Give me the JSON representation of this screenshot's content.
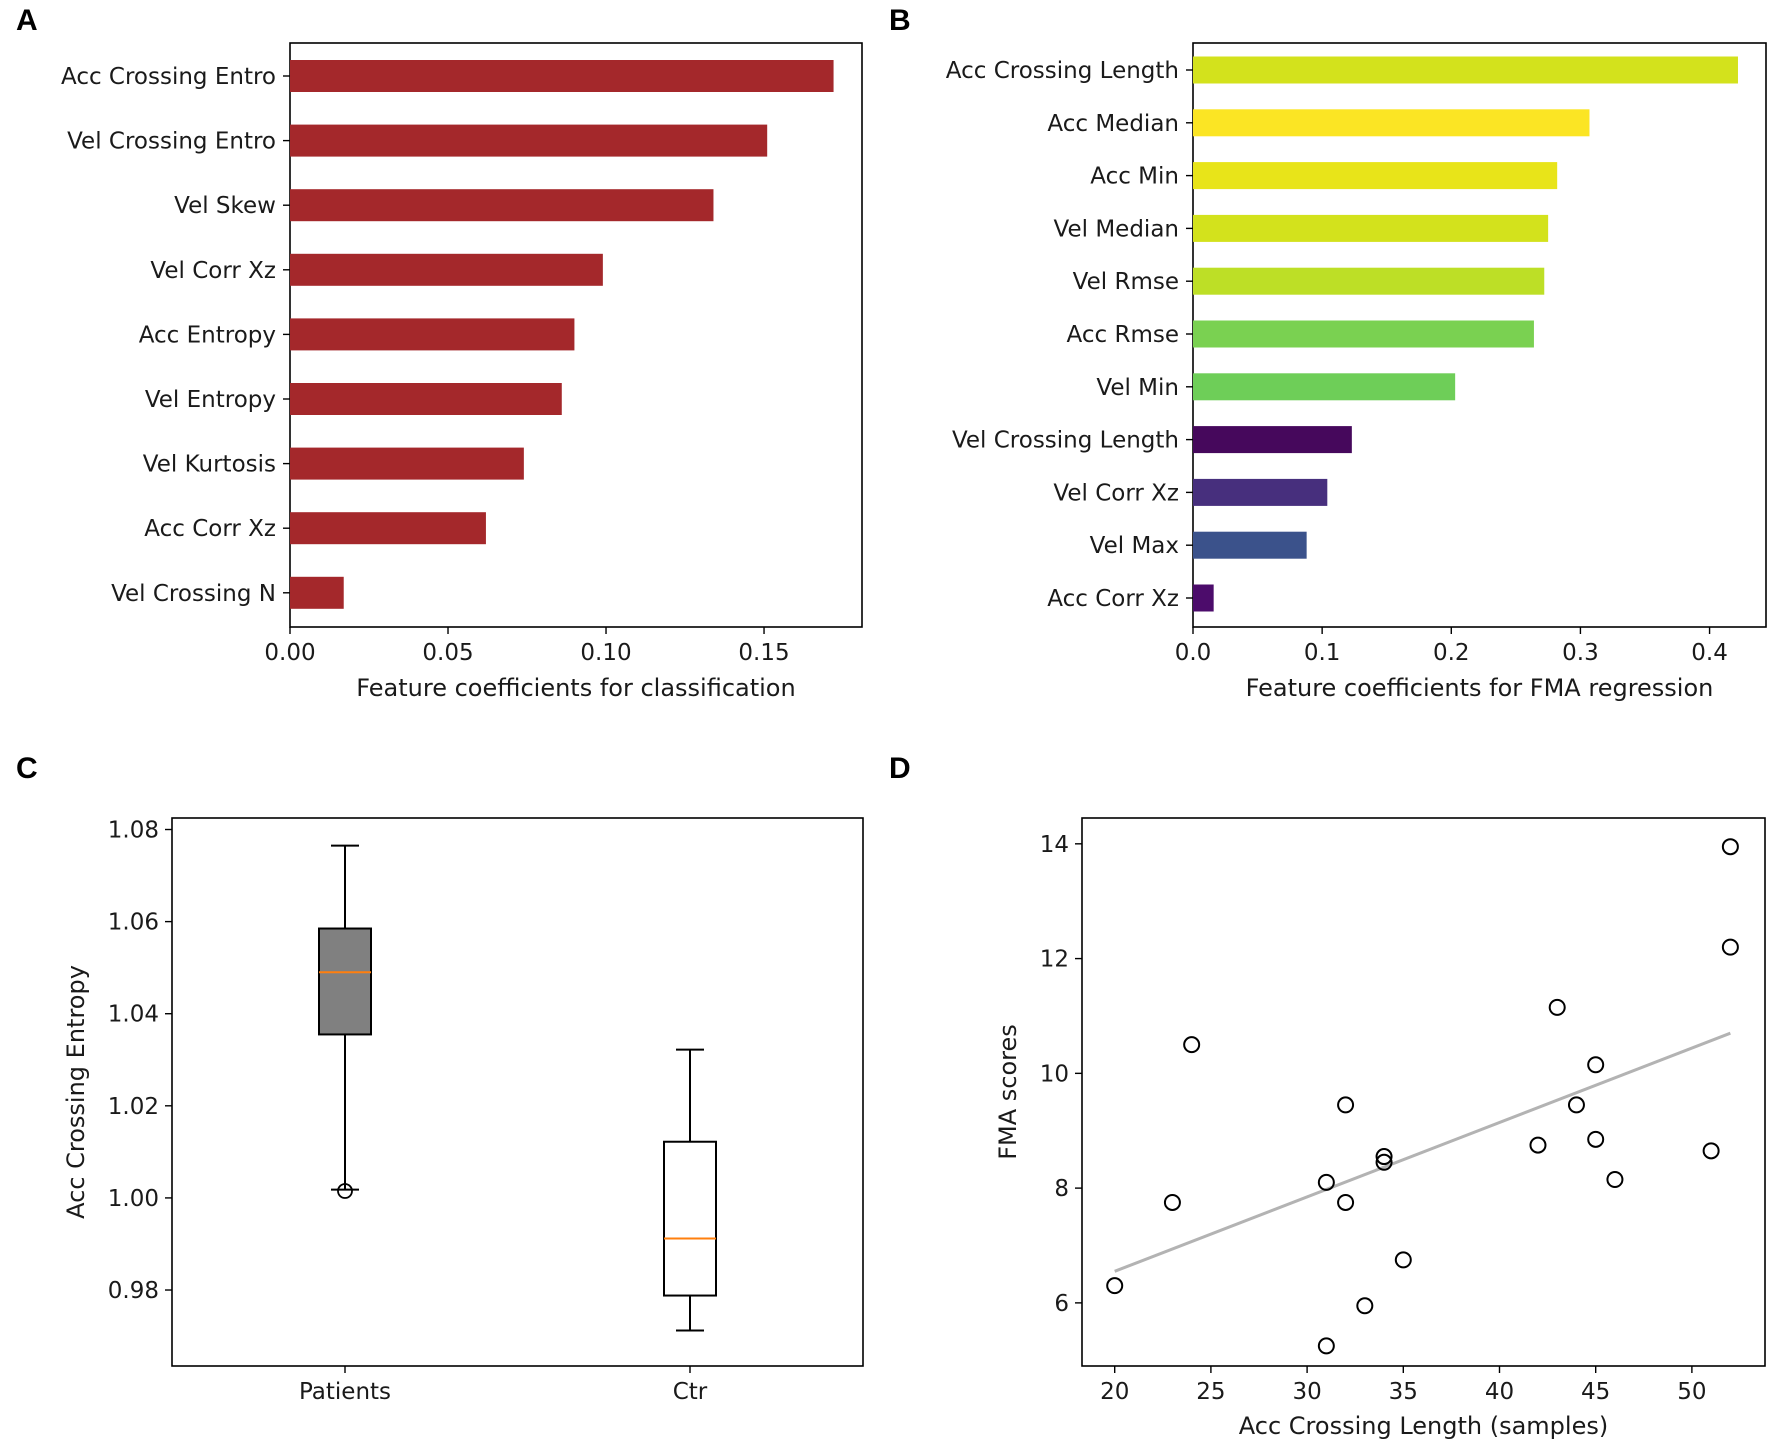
{
  "chart_data": [
    {
      "panel": "A",
      "type": "bar",
      "orientation": "horizontal",
      "categories": [
        "Acc Crossing Entro",
        "Vel Crossing Entro",
        "Vel Skew",
        "Vel Corr Xz",
        "Acc Entropy",
        "Vel Entropy",
        "Vel Kurtosis",
        "Acc Corr Xz",
        "Vel Crossing N"
      ],
      "values": [
        0.172,
        0.151,
        0.134,
        0.099,
        0.09,
        0.086,
        0.074,
        0.062,
        0.017
      ],
      "colors": [
        "#a4282b",
        "#a4282b",
        "#a4282b",
        "#a4282b",
        "#a4282b",
        "#a4282b",
        "#a4282b",
        "#a4282b",
        "#a4282b"
      ],
      "xlabel": "Feature coefficients for classification",
      "ylabel": "",
      "xlim": [
        0,
        0.181
      ],
      "xticks": [
        0.0,
        0.05,
        0.1,
        0.15
      ],
      "xtick_labels": [
        "0.00",
        "0.05",
        "0.10",
        "0.15"
      ]
    },
    {
      "panel": "B",
      "type": "bar",
      "orientation": "horizontal",
      "categories": [
        "Acc Crossing Length",
        "Acc Median",
        "Acc Min",
        "Vel Median",
        "Vel Rmse",
        "Acc Rmse",
        "Vel Min",
        "Vel Crossing Length",
        "Vel Corr Xz",
        "Vel Max",
        "Acc Corr Xz"
      ],
      "values": [
        0.422,
        0.307,
        0.282,
        0.275,
        0.272,
        0.264,
        0.203,
        0.123,
        0.104,
        0.088,
        0.016
      ],
      "colors": [
        "#d3e21c",
        "#fbe524",
        "#e8e419",
        "#d3e21c",
        "#bddf26",
        "#7ad151",
        "#6ece58",
        "#46085c",
        "#472f7d",
        "#3b528b",
        "#4c0c6b"
      ],
      "xlabel": "Feature coefficients for FMA regression",
      "ylabel": "",
      "xlim": [
        0,
        0.4437
      ],
      "xticks": [
        0.0,
        0.1,
        0.2,
        0.3,
        0.4
      ],
      "xtick_labels": [
        "0.0",
        "0.1",
        "0.2",
        "0.3",
        "0.4"
      ]
    },
    {
      "panel": "C",
      "type": "box",
      "categories": [
        "Patients",
        "Ctr"
      ],
      "boxes": [
        {
          "name": "Patients",
          "whisker_low": 1.0018,
          "q1": 1.0355,
          "median": 1.049,
          "q3": 1.0585,
          "whisker_high": 1.0765,
          "outliers": [
            1.0015
          ],
          "fill": "#808080"
        },
        {
          "name": "Ctr",
          "whisker_low": 0.9712,
          "q1": 0.9788,
          "median": 0.9912,
          "q3": 1.0122,
          "whisker_high": 1.0322,
          "outliers": [],
          "fill": "#ffffff"
        }
      ],
      "median_color": "#ff7f0e",
      "xlabel": "",
      "ylabel": "Acc Crossing Entropy",
      "ylim": [
        0.9635,
        1.0825
      ],
      "yticks": [
        0.98,
        1.0,
        1.02,
        1.04,
        1.06,
        1.08
      ],
      "ytick_labels": [
        "0.98",
        "1.00",
        "1.02",
        "1.04",
        "1.06",
        "1.08"
      ]
    },
    {
      "panel": "D",
      "type": "scatter",
      "points": [
        {
          "x": 20,
          "y": 6.3
        },
        {
          "x": 23,
          "y": 7.75
        },
        {
          "x": 24,
          "y": 10.5
        },
        {
          "x": 31,
          "y": 8.1
        },
        {
          "x": 31,
          "y": 5.25
        },
        {
          "x": 32,
          "y": 9.45
        },
        {
          "x": 32,
          "y": 7.75
        },
        {
          "x": 33,
          "y": 5.95
        },
        {
          "x": 34,
          "y": 8.55
        },
        {
          "x": 34,
          "y": 8.45
        },
        {
          "x": 35,
          "y": 6.75
        },
        {
          "x": 42,
          "y": 8.75
        },
        {
          "x": 43,
          "y": 11.15
        },
        {
          "x": 44,
          "y": 9.45
        },
        {
          "x": 45,
          "y": 10.15
        },
        {
          "x": 45,
          "y": 8.85
        },
        {
          "x": 46,
          "y": 8.15
        },
        {
          "x": 51,
          "y": 8.65
        },
        {
          "x": 52,
          "y": 13.95
        },
        {
          "x": 52,
          "y": 12.2
        }
      ],
      "trend_line": {
        "x": [
          20,
          52
        ],
        "y": [
          6.55,
          10.7
        ],
        "color": "#b3b3b3"
      },
      "xlabel": "Acc Crossing Length (samples)",
      "ylabel": "FMA scores",
      "xlim": [
        18.3,
        53.8
      ],
      "ylim": [
        4.9,
        14.45
      ],
      "xticks": [
        20,
        25,
        30,
        35,
        40,
        45,
        50
      ],
      "xtick_labels": [
        "20",
        "25",
        "30",
        "35",
        "40",
        "45",
        "50"
      ],
      "yticks": [
        6,
        8,
        10,
        12,
        14
      ],
      "ytick_labels": [
        "6",
        "8",
        "10",
        "12",
        "14"
      ]
    }
  ],
  "panel_labels": {
    "a": "A",
    "b": "B",
    "c": "C",
    "d": "D"
  }
}
